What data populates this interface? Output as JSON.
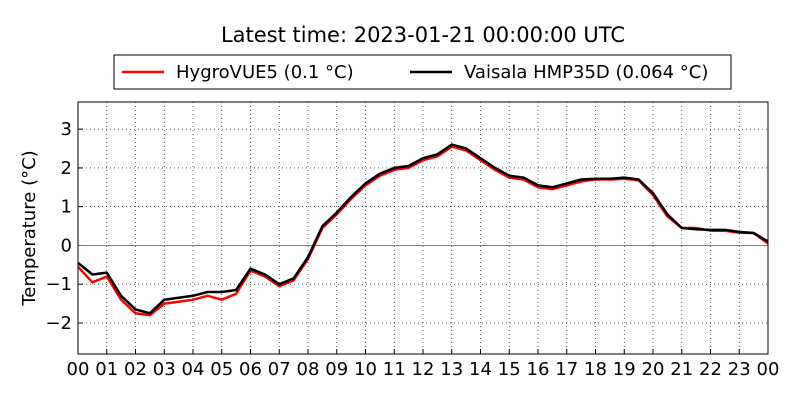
{
  "chart_data": {
    "type": "line",
    "title": "Latest time: 2023-01-21 00:00:00 UTC",
    "y_label": "Temperature (°C)",
    "x": [
      0,
      0.5,
      1,
      1.5,
      2,
      2.5,
      3,
      3.5,
      4,
      4.5,
      5,
      5.5,
      6,
      6.5,
      7,
      7.5,
      8,
      8.5,
      9,
      9.5,
      10,
      10.5,
      11,
      11.5,
      12,
      12.5,
      13,
      13.5,
      14,
      14.5,
      15,
      15.5,
      16,
      16.5,
      17,
      17.5,
      18,
      18.5,
      19,
      19.5,
      20,
      20.5,
      21,
      21.5,
      22,
      22.5,
      23,
      23.5,
      24
    ],
    "series": [
      {
        "name": "HygroVUE5 (0.1 °C)",
        "color": "#ff0000",
        "values": [
          -0.55,
          -0.95,
          -0.8,
          -1.4,
          -1.75,
          -1.8,
          -1.5,
          -1.45,
          -1.4,
          -1.3,
          -1.4,
          -1.25,
          -0.65,
          -0.8,
          -1.05,
          -0.9,
          -0.35,
          0.45,
          0.8,
          1.2,
          1.55,
          1.8,
          1.95,
          2.0,
          2.2,
          2.3,
          2.55,
          2.45,
          2.2,
          1.95,
          1.75,
          1.7,
          1.5,
          1.45,
          1.55,
          1.65,
          1.7,
          1.7,
          1.72,
          1.68,
          1.3,
          0.75,
          0.45,
          0.45,
          0.38,
          0.38,
          0.33,
          0.32,
          0.05
        ]
      },
      {
        "name": "Vaisala HMP35D (0.064 °C)",
        "color": "#000000",
        "values": [
          -0.45,
          -0.75,
          -0.7,
          -1.3,
          -1.65,
          -1.75,
          -1.4,
          -1.35,
          -1.3,
          -1.2,
          -1.2,
          -1.15,
          -0.6,
          -0.75,
          -1.0,
          -0.85,
          -0.3,
          0.5,
          0.85,
          1.25,
          1.6,
          1.85,
          2.0,
          2.05,
          2.25,
          2.35,
          2.6,
          2.5,
          2.25,
          2.0,
          1.8,
          1.75,
          1.55,
          1.5,
          1.6,
          1.7,
          1.72,
          1.72,
          1.75,
          1.7,
          1.35,
          0.8,
          0.45,
          0.42,
          0.4,
          0.4,
          0.35,
          0.32,
          0.1
        ]
      }
    ],
    "xlim": [
      0,
      24
    ],
    "xticks": [
      {
        "value": 0,
        "label": "00"
      },
      {
        "value": 1,
        "label": "01"
      },
      {
        "value": 2,
        "label": "02"
      },
      {
        "value": 3,
        "label": "03"
      },
      {
        "value": 4,
        "label": "04"
      },
      {
        "value": 5,
        "label": "05"
      },
      {
        "value": 6,
        "label": "06"
      },
      {
        "value": 7,
        "label": "07"
      },
      {
        "value": 8,
        "label": "08"
      },
      {
        "value": 9,
        "label": "09"
      },
      {
        "value": 10,
        "label": "10"
      },
      {
        "value": 11,
        "label": "11"
      },
      {
        "value": 12,
        "label": "12"
      },
      {
        "value": 13,
        "label": "13"
      },
      {
        "value": 14,
        "label": "14"
      },
      {
        "value": 15,
        "label": "15"
      },
      {
        "value": 16,
        "label": "16"
      },
      {
        "value": 17,
        "label": "17"
      },
      {
        "value": 18,
        "label": "18"
      },
      {
        "value": 19,
        "label": "19"
      },
      {
        "value": 20,
        "label": "20"
      },
      {
        "value": 21,
        "label": "21"
      },
      {
        "value": 22,
        "label": "22"
      },
      {
        "value": 23,
        "label": "23"
      },
      {
        "value": 24,
        "label": "00"
      }
    ],
    "ylim": [
      -2.8,
      3.7
    ],
    "yticks": [
      {
        "value": -2,
        "label": "−2"
      },
      {
        "value": -1,
        "label": "−1"
      },
      0,
      1,
      2,
      3
    ],
    "grid": true,
    "legend": "top"
  }
}
